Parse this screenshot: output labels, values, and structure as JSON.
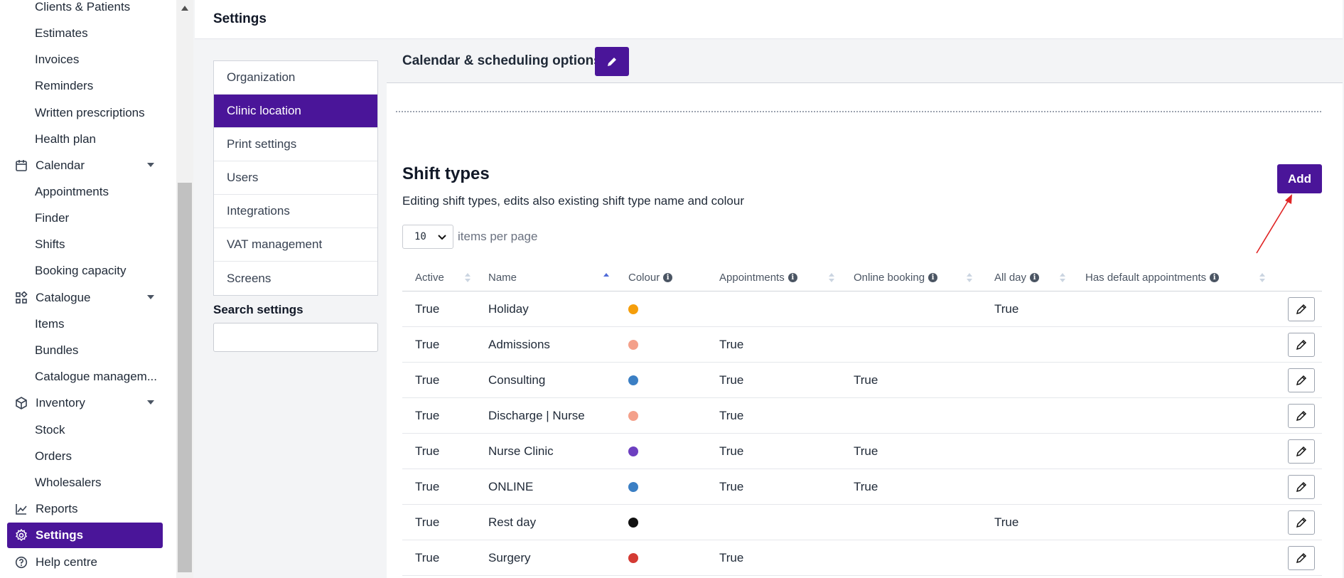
{
  "sidebar": {
    "items": [
      {
        "label": "Clients & Patients",
        "icon": "",
        "type": "sub"
      },
      {
        "label": "Estimates",
        "icon": "",
        "type": "sub"
      },
      {
        "label": "Invoices",
        "icon": "",
        "type": "sub"
      },
      {
        "label": "Reminders",
        "icon": "",
        "type": "sub"
      },
      {
        "label": "Written prescriptions",
        "icon": "",
        "type": "sub"
      },
      {
        "label": "Health plan",
        "icon": "",
        "type": "sub"
      },
      {
        "label": "Calendar",
        "icon": "calendar-icon",
        "type": "top",
        "expandable": true
      },
      {
        "label": "Appointments",
        "icon": "",
        "type": "sub"
      },
      {
        "label": "Finder",
        "icon": "",
        "type": "sub"
      },
      {
        "label": "Shifts",
        "icon": "",
        "type": "sub"
      },
      {
        "label": "Booking capacity",
        "icon": "",
        "type": "sub"
      },
      {
        "label": "Catalogue",
        "icon": "catalogue-icon",
        "type": "top",
        "expandable": true
      },
      {
        "label": "Items",
        "icon": "",
        "type": "sub"
      },
      {
        "label": "Bundles",
        "icon": "",
        "type": "sub"
      },
      {
        "label": "Catalogue managem...",
        "icon": "",
        "type": "sub"
      },
      {
        "label": "Inventory",
        "icon": "inventory-icon",
        "type": "top",
        "expandable": true
      },
      {
        "label": "Stock",
        "icon": "",
        "type": "sub"
      },
      {
        "label": "Orders",
        "icon": "",
        "type": "sub"
      },
      {
        "label": "Wholesalers",
        "icon": "",
        "type": "sub"
      },
      {
        "label": "Reports",
        "icon": "reports-icon",
        "type": "top"
      },
      {
        "label": "Settings",
        "icon": "gear-icon",
        "type": "top",
        "active": true
      },
      {
        "label": "Help centre",
        "icon": "help-icon",
        "type": "top"
      }
    ]
  },
  "header": {
    "title": "Settings"
  },
  "settings_menu": {
    "items": [
      "Organization",
      "Clinic location",
      "Print settings",
      "Users",
      "Integrations",
      "VAT management",
      "Screens"
    ],
    "active": "Clinic location",
    "search_label": "Search settings",
    "search_value": ""
  },
  "calendar_section": {
    "title": "Calendar & scheduling options"
  },
  "shift_types": {
    "title": "Shift types",
    "description": "Editing shift types, edits also existing shift type name and colour",
    "add_label": "Add",
    "per_page_value": "10",
    "per_page_label": "items per page",
    "columns": [
      "Active",
      "Name",
      "Colour",
      "Appointments",
      "Online booking",
      "All day",
      "Has default appointments"
    ],
    "rows": [
      {
        "active": "True",
        "name": "Holiday",
        "colour": "#f59e0b",
        "appointments": "",
        "online_booking": "",
        "all_day": "True",
        "has_default": ""
      },
      {
        "active": "True",
        "name": "Admissions",
        "colour": "#f4a08a",
        "appointments": "True",
        "online_booking": "",
        "all_day": "",
        "has_default": ""
      },
      {
        "active": "True",
        "name": "Consulting",
        "colour": "#3b7fc4",
        "appointments": "True",
        "online_booking": "True",
        "all_day": "",
        "has_default": ""
      },
      {
        "active": "True",
        "name": "Discharge | Nurse",
        "colour": "#f4a08a",
        "appointments": "True",
        "online_booking": "",
        "all_day": "",
        "has_default": ""
      },
      {
        "active": "True",
        "name": "Nurse Clinic",
        "colour": "#6d3fc0",
        "appointments": "True",
        "online_booking": "True",
        "all_day": "",
        "has_default": ""
      },
      {
        "active": "True",
        "name": "ONLINE",
        "colour": "#3b7fc4",
        "appointments": "True",
        "online_booking": "True",
        "all_day": "",
        "has_default": ""
      },
      {
        "active": "True",
        "name": "Rest day",
        "colour": "#111111",
        "appointments": "",
        "online_booking": "",
        "all_day": "True",
        "has_default": ""
      },
      {
        "active": "True",
        "name": "Surgery",
        "colour": "#d43b34",
        "appointments": "True",
        "online_booking": "",
        "all_day": "",
        "has_default": ""
      }
    ]
  },
  "colors": {
    "accent": "#4a1599",
    "annotation": "#e02424"
  }
}
